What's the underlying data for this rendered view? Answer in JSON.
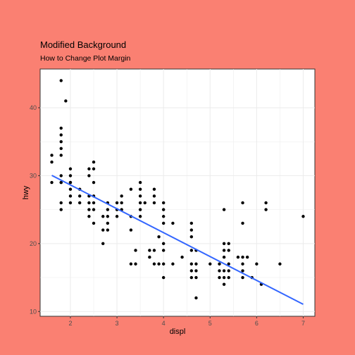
{
  "chart_data": {
    "type": "scatter",
    "title": "Modified Background",
    "subtitle": "How to Change Plot Margin",
    "xlabel": "displ",
    "ylabel": "hwy",
    "xlim": [
      1.35,
      7.25
    ],
    "ylim": [
      9.3,
      45.7
    ],
    "xticks": [
      2,
      3,
      4,
      5,
      6,
      7
    ],
    "yticks": [
      10,
      20,
      30,
      40
    ],
    "grid": true,
    "colors": {
      "background": "#fa8072",
      "panel": "#ffffff",
      "grid": "#ebebeb",
      "border": "#333333",
      "points": "#000000",
      "trend": "#3366ff"
    },
    "trend_line": {
      "method": "lm",
      "x": [
        1.6,
        7.0
      ],
      "y": [
        30.04,
        11.06
      ]
    },
    "points": [
      [
        1.6,
        33
      ],
      [
        1.6,
        32
      ],
      [
        1.6,
        29
      ],
      [
        1.8,
        29
      ],
      [
        1.8,
        29
      ],
      [
        1.8,
        30
      ],
      [
        1.8,
        26
      ],
      [
        1.8,
        25
      ],
      [
        1.8,
        44
      ],
      [
        1.8,
        37
      ],
      [
        1.8,
        36
      ],
      [
        1.8,
        35
      ],
      [
        1.8,
        34
      ],
      [
        1.8,
        33
      ],
      [
        1.9,
        41
      ],
      [
        2.0,
        31
      ],
      [
        2.0,
        30
      ],
      [
        2.0,
        28
      ],
      [
        2.0,
        29
      ],
      [
        2.0,
        26
      ],
      [
        2.0,
        27
      ],
      [
        2.0,
        29
      ],
      [
        2.2,
        26
      ],
      [
        2.2,
        27
      ],
      [
        2.2,
        28
      ],
      [
        2.4,
        27
      ],
      [
        2.4,
        26
      ],
      [
        2.4,
        30
      ],
      [
        2.4,
        31
      ],
      [
        2.4,
        24
      ],
      [
        2.4,
        25
      ],
      [
        2.5,
        29
      ],
      [
        2.5,
        32
      ],
      [
        2.5,
        31
      ],
      [
        2.5,
        27
      ],
      [
        2.5,
        26
      ],
      [
        2.5,
        25
      ],
      [
        2.5,
        23
      ],
      [
        2.7,
        20
      ],
      [
        2.7,
        22
      ],
      [
        2.7,
        24
      ],
      [
        2.8,
        26
      ],
      [
        2.8,
        25
      ],
      [
        2.8,
        24
      ],
      [
        2.8,
        23
      ],
      [
        2.8,
        22
      ],
      [
        3.0,
        26
      ],
      [
        3.0,
        25
      ],
      [
        3.0,
        24
      ],
      [
        3.1,
        25
      ],
      [
        3.1,
        26
      ],
      [
        3.1,
        27
      ],
      [
        3.3,
        22
      ],
      [
        3.3,
        24
      ],
      [
        3.3,
        28
      ],
      [
        3.3,
        17
      ],
      [
        3.4,
        19
      ],
      [
        3.4,
        17
      ],
      [
        3.5,
        29
      ],
      [
        3.5,
        28
      ],
      [
        3.5,
        27
      ],
      [
        3.5,
        26
      ],
      [
        3.5,
        25
      ],
      [
        3.5,
        24
      ],
      [
        3.6,
        26
      ],
      [
        3.7,
        18
      ],
      [
        3.7,
        19
      ],
      [
        3.8,
        17
      ],
      [
        3.8,
        19
      ],
      [
        3.8,
        26
      ],
      [
        3.8,
        27
      ],
      [
        3.8,
        28
      ],
      [
        3.9,
        21
      ],
      [
        3.9,
        17
      ],
      [
        4.0,
        26
      ],
      [
        4.0,
        25
      ],
      [
        4.0,
        24
      ],
      [
        4.0,
        23
      ],
      [
        4.0,
        20
      ],
      [
        4.0,
        19
      ],
      [
        4.0,
        17
      ],
      [
        4.0,
        15
      ],
      [
        4.2,
        23
      ],
      [
        4.2,
        17
      ],
      [
        4.4,
        18
      ],
      [
        4.6,
        23
      ],
      [
        4.6,
        22
      ],
      [
        4.6,
        21
      ],
      [
        4.6,
        19
      ],
      [
        4.6,
        17
      ],
      [
        4.6,
        16
      ],
      [
        4.6,
        15
      ],
      [
        4.7,
        12
      ],
      [
        4.7,
        15
      ],
      [
        4.7,
        16
      ],
      [
        4.7,
        17
      ],
      [
        4.7,
        19
      ],
      [
        5.0,
        17
      ],
      [
        5.2,
        15
      ],
      [
        5.2,
        16
      ],
      [
        5.2,
        17
      ],
      [
        5.3,
        25
      ],
      [
        5.3,
        20
      ],
      [
        5.3,
        19
      ],
      [
        5.3,
        18
      ],
      [
        5.3,
        16
      ],
      [
        5.3,
        15
      ],
      [
        5.3,
        14
      ],
      [
        5.4,
        20
      ],
      [
        5.4,
        19
      ],
      [
        5.4,
        17
      ],
      [
        5.4,
        16
      ],
      [
        5.4,
        15
      ],
      [
        5.6,
        18
      ],
      [
        5.7,
        26
      ],
      [
        5.7,
        23
      ],
      [
        5.7,
        18
      ],
      [
        5.7,
        17
      ],
      [
        5.7,
        16
      ],
      [
        5.7,
        15
      ],
      [
        5.8,
        18
      ],
      [
        5.9,
        15
      ],
      [
        6.0,
        17
      ],
      [
        6.1,
        14
      ],
      [
        6.2,
        25
      ],
      [
        6.2,
        26
      ],
      [
        6.5,
        17
      ],
      [
        7.0,
        24
      ]
    ]
  }
}
